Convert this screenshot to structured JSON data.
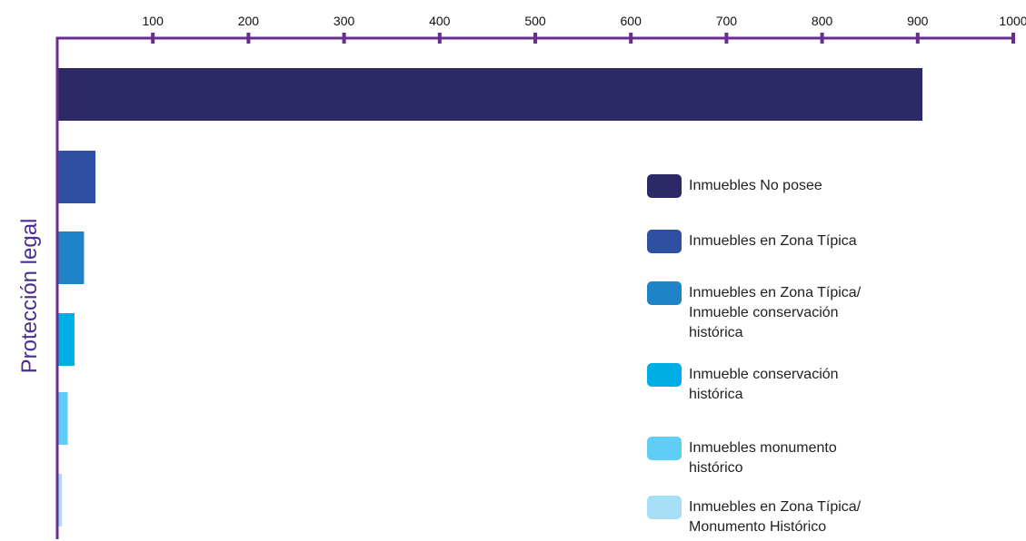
{
  "chart_data": {
    "type": "bar",
    "orientation": "horizontal",
    "ylabel": "Protección legal",
    "xlim": [
      0,
      1000
    ],
    "x_ticks": [
      "100",
      "200",
      "300",
      "400",
      "500",
      "600",
      "700",
      "800",
      "900",
      "1000"
    ],
    "grid": false,
    "legend_position": "right",
    "series": [
      {
        "name": "Inmuebles No posee",
        "value": 905,
        "color": "#2c2966"
      },
      {
        "name": "Inmuebles en Zona Típica",
        "value": 40,
        "color": "#2f4fa3"
      },
      {
        "name": "Inmuebles en Zona Típica/\nInmueble  conservación\nhistórica",
        "value": 28,
        "color": "#1f84c7"
      },
      {
        "name": "Inmueble  conservación\nhistórica",
        "value": 18,
        "color": "#00aee6"
      },
      {
        "name": "Inmuebles monumento\nhistórico",
        "value": 11,
        "color": "#5fcdf5"
      },
      {
        "name": "Inmuebles en Zona Típica/\nMonumento Histórico",
        "value": 5,
        "color": "#a6dff5"
      }
    ],
    "axis_color": "#6a2c91"
  }
}
